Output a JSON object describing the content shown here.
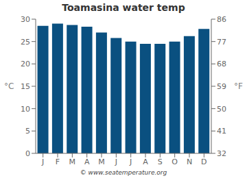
{
  "chart_data": {
    "type": "bar",
    "title": "Toamasina water temp",
    "categories": [
      "J",
      "F",
      "M",
      "A",
      "M",
      "J",
      "J",
      "A",
      "S",
      "O",
      "N",
      "D"
    ],
    "values": [
      28.5,
      29.0,
      28.7,
      28.3,
      27.0,
      25.8,
      25.0,
      24.5,
      24.5,
      25.0,
      26.2,
      27.8
    ],
    "color": "#0a5080",
    "ylabel": "°C",
    "ylim": [
      0,
      30
    ],
    "yticks": [
      0,
      5,
      10,
      15,
      20,
      25,
      30
    ],
    "y2label": "°F",
    "y2lim": [
      32,
      86
    ],
    "y2ticks": [
      32,
      41,
      50,
      59,
      68,
      77,
      86
    ],
    "grid": false,
    "annotations": [
      "© www.seatemperature.org"
    ]
  }
}
